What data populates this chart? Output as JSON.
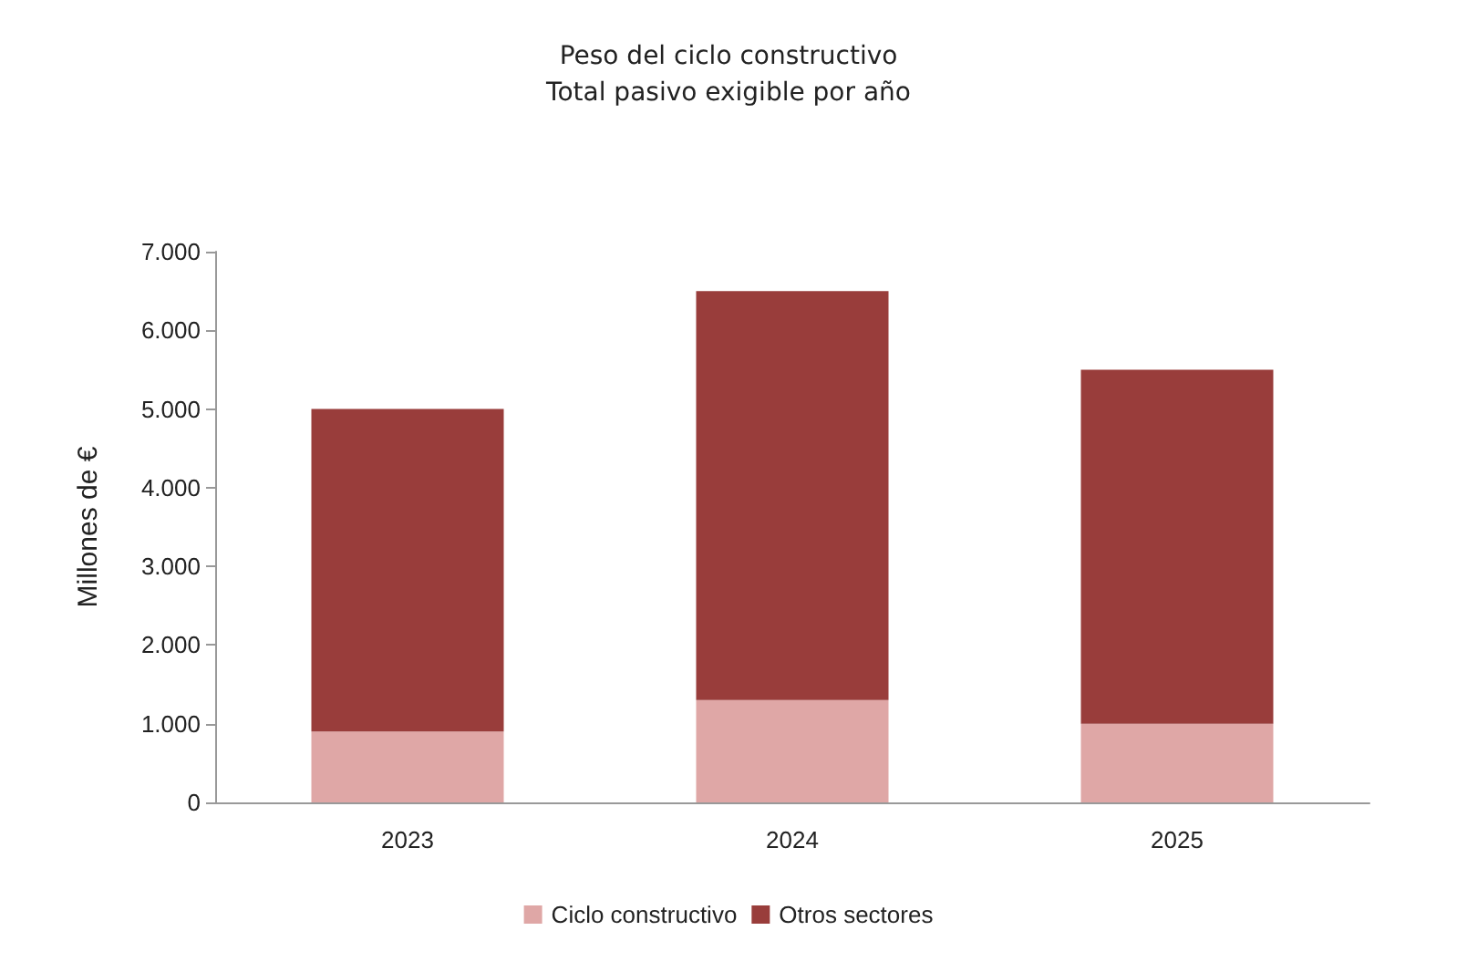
{
  "chart_data": {
    "type": "bar",
    "title": "Peso del ciclo constructivo\nTotal pasivo exigible por año",
    "ylabel": "Millones de €",
    "categories": [
      "2023",
      "2024",
      "2025"
    ],
    "stacked": true,
    "series": [
      {
        "name": "Ciclo constructivo",
        "color": "#dfa7a6",
        "values": [
          900,
          1300,
          1000
        ]
      },
      {
        "name": "Otros sectores",
        "color": "#993d3b",
        "values": [
          4100,
          5200,
          4500
        ]
      }
    ],
    "ylim": [
      0,
      7000
    ],
    "yticks": [
      {
        "value": 0,
        "label": "0"
      },
      {
        "value": 1000,
        "label": "1.000"
      },
      {
        "value": 2000,
        "label": "2.000"
      },
      {
        "value": 3000,
        "label": "3.000"
      },
      {
        "value": 4000,
        "label": "4.000"
      },
      {
        "value": 5000,
        "label": "5.000"
      },
      {
        "value": 6000,
        "label": "6.000"
      },
      {
        "value": 7000,
        "label": "7.000"
      }
    ],
    "grid": false,
    "legend": "bottom"
  }
}
